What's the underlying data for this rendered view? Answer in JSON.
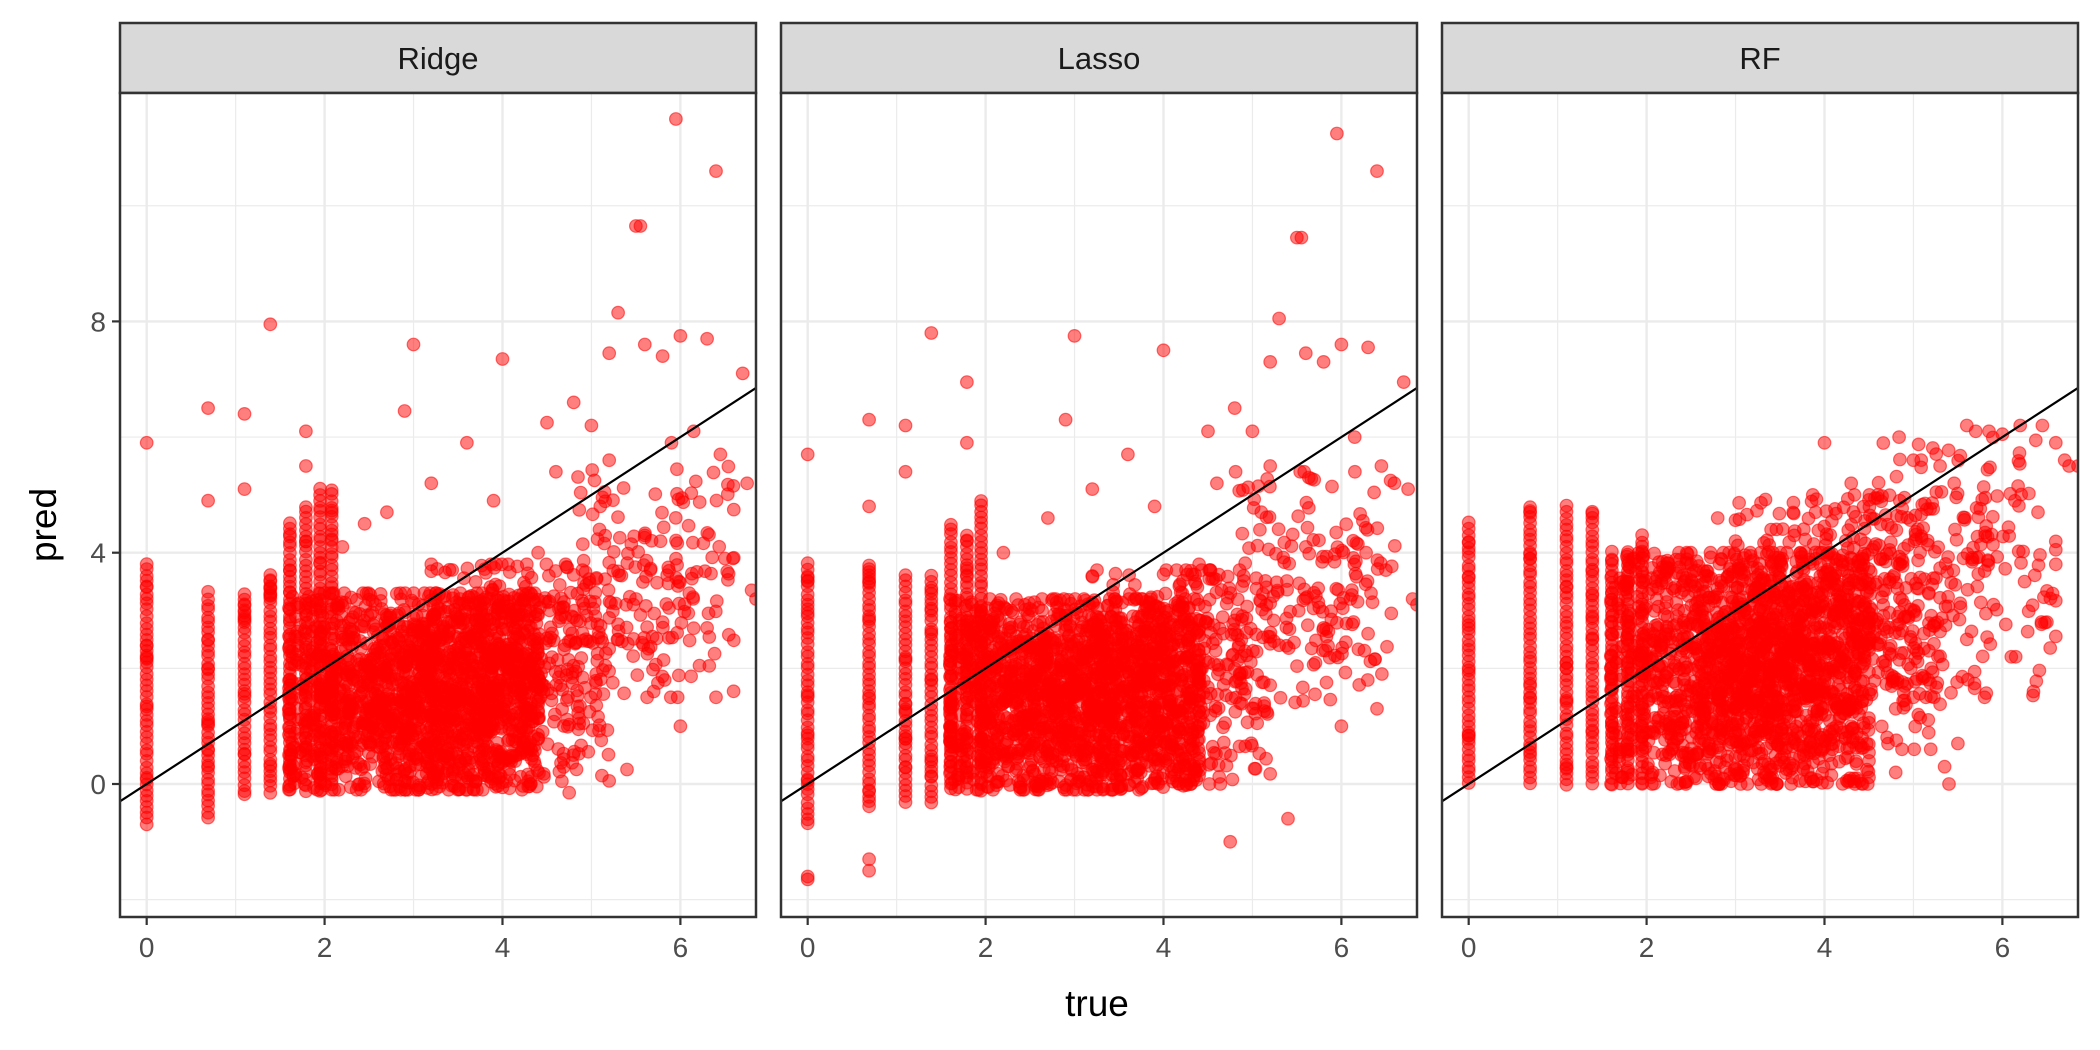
{
  "chart_data": {
    "type": "scatter",
    "xlabel": "true",
    "ylabel": "pred",
    "xlim": [
      -0.3,
      6.85
    ],
    "ylim": [
      -2.3,
      11.95
    ],
    "x_ticks": [
      0,
      2,
      4,
      6
    ],
    "x_tick_labels": [
      "0",
      "2",
      "4",
      "6"
    ],
    "y_ticks": [
      0,
      4,
      8
    ],
    "y_tick_labels": [
      "0",
      "4",
      "8"
    ],
    "reference_line": {
      "intercept": 0,
      "slope": 1
    },
    "grid": true,
    "legend": "none",
    "point_color": "#FF0000",
    "line_color": "#000000",
    "panels": [
      {
        "name": "Ridge",
        "vertical_strips": [
          {
            "x": 0,
            "y_min": -0.7,
            "y_max": 3.8
          },
          {
            "x": 0.69,
            "y_min": -0.6,
            "y_max": 3.3
          },
          {
            "x": 1.1,
            "y_min": -0.2,
            "y_max": 3.3
          },
          {
            "x": 1.39,
            "y_min": -0.15,
            "y_max": 3.6
          },
          {
            "x": 1.61,
            "y_min": -0.1,
            "y_max": 4.5
          },
          {
            "x": 1.79,
            "y_min": -0.1,
            "y_max": 4.8
          },
          {
            "x": 1.95,
            "y_min": -0.1,
            "y_max": 5.1
          },
          {
            "x": 2.08,
            "y_min": -0.1,
            "y_max": 5.1
          }
        ],
        "points": [
          [
            0,
            5.9
          ],
          [
            0.69,
            6.5
          ],
          [
            0.69,
            4.9
          ],
          [
            1.1,
            6.4
          ],
          [
            1.1,
            5.1
          ],
          [
            1.39,
            7.95
          ],
          [
            1.79,
            6.1
          ],
          [
            1.79,
            5.5
          ],
          [
            3.0,
            7.6
          ],
          [
            2.9,
            6.45
          ],
          [
            4.0,
            7.35
          ],
          [
            3.6,
            5.9
          ],
          [
            5.3,
            8.15
          ],
          [
            5.5,
            9.65
          ],
          [
            5.55,
            9.65
          ],
          [
            5.95,
            11.5
          ],
          [
            6.4,
            10.6
          ],
          [
            5.2,
            7.45
          ],
          [
            5.6,
            7.6
          ],
          [
            5.8,
            7.4
          ],
          [
            6.0,
            7.75
          ],
          [
            6.3,
            7.7
          ],
          [
            6.7,
            7.1
          ],
          [
            6.15,
            6.1
          ],
          [
            6.45,
            5.7
          ],
          [
            6.75,
            5.2
          ],
          [
            6.8,
            3.35
          ],
          [
            6.85,
            3.2
          ],
          [
            6.5,
            3.9
          ],
          [
            6.3,
            2.7
          ],
          [
            5.0,
            6.2
          ],
          [
            5.2,
            5.6
          ],
          [
            5.9,
            5.9
          ],
          [
            4.5,
            6.25
          ],
          [
            4.8,
            6.6
          ],
          [
            6.4,
            1.5
          ],
          [
            6.0,
            1.0
          ],
          [
            5.7,
            1.6
          ],
          [
            4.75,
            -0.15
          ],
          [
            5.4,
            0.25
          ],
          [
            3.5,
            -0.1
          ],
          [
            3.2,
            5.2
          ],
          [
            2.7,
            4.7
          ],
          [
            2.2,
            4.1
          ],
          [
            2.45,
            4.5
          ],
          [
            4.4,
            4.0
          ],
          [
            4.9,
            3.7
          ],
          [
            5.3,
            2.5
          ],
          [
            5.8,
            2.8
          ],
          [
            6.1,
            3.3
          ],
          [
            5.6,
            4.3
          ],
          [
            5.1,
            4.8
          ],
          [
            4.6,
            5.4
          ],
          [
            3.9,
            4.9
          ]
        ],
        "clusters": [
          {
            "x_range": [
              1.6,
              4.4
            ],
            "y_range": [
              -0.1,
              3.3
            ],
            "count": 1700
          },
          {
            "x_range": [
              3.2,
              5.2
            ],
            "y_range": [
              0.0,
              3.8
            ],
            "count": 450
          },
          {
            "x_range": [
              4.8,
              6.6
            ],
            "y_range": [
              1.5,
              5.5
            ],
            "count": 170
          }
        ]
      },
      {
        "name": "Lasso",
        "vertical_strips": [
          {
            "x": 0,
            "y_min": -0.7,
            "y_max": 3.8
          },
          {
            "x": 0.69,
            "y_min": -0.4,
            "y_max": 3.8
          },
          {
            "x": 1.1,
            "y_min": -0.3,
            "y_max": 3.6
          },
          {
            "x": 1.39,
            "y_min": -0.3,
            "y_max": 3.6
          },
          {
            "x": 1.61,
            "y_min": -0.1,
            "y_max": 4.5
          },
          {
            "x": 1.79,
            "y_min": -0.1,
            "y_max": 4.3
          },
          {
            "x": 1.95,
            "y_min": -0.1,
            "y_max": 4.9
          }
        ],
        "points": [
          [
            0,
            5.7
          ],
          [
            0,
            -1.6
          ],
          [
            0,
            -1.65
          ],
          [
            0.69,
            6.3
          ],
          [
            0.69,
            4.8
          ],
          [
            0.69,
            -1.3
          ],
          [
            0.69,
            -1.5
          ],
          [
            1.1,
            6.2
          ],
          [
            1.1,
            5.4
          ],
          [
            1.39,
            7.8
          ],
          [
            1.79,
            6.95
          ],
          [
            1.79,
            5.9
          ],
          [
            3.0,
            7.75
          ],
          [
            2.9,
            6.3
          ],
          [
            4.0,
            7.5
          ],
          [
            3.6,
            5.7
          ],
          [
            5.3,
            8.05
          ],
          [
            5.5,
            9.45
          ],
          [
            5.55,
            9.45
          ],
          [
            5.95,
            11.25
          ],
          [
            6.4,
            10.6
          ],
          [
            5.2,
            7.3
          ],
          [
            5.6,
            7.45
          ],
          [
            5.8,
            7.3
          ],
          [
            6.0,
            7.6
          ],
          [
            6.3,
            7.55
          ],
          [
            6.7,
            6.95
          ],
          [
            6.15,
            6.0
          ],
          [
            6.45,
            5.5
          ],
          [
            6.75,
            5.1
          ],
          [
            6.8,
            3.2
          ],
          [
            6.85,
            3.1
          ],
          [
            6.5,
            3.7
          ],
          [
            6.3,
            2.6
          ],
          [
            5.0,
            6.1
          ],
          [
            5.2,
            5.5
          ],
          [
            4.5,
            6.1
          ],
          [
            4.8,
            6.5
          ],
          [
            6.4,
            1.3
          ],
          [
            6.0,
            1.0
          ],
          [
            4.75,
            -1.0
          ],
          [
            5.4,
            -0.6
          ],
          [
            3.5,
            -0.05
          ],
          [
            3.2,
            5.1
          ],
          [
            2.7,
            4.6
          ],
          [
            2.2,
            4.0
          ],
          [
            4.4,
            3.8
          ],
          [
            4.9,
            3.6
          ],
          [
            5.3,
            2.4
          ],
          [
            5.8,
            2.7
          ],
          [
            6.1,
            3.2
          ],
          [
            5.6,
            4.1
          ],
          [
            5.1,
            4.7
          ],
          [
            4.6,
            5.2
          ],
          [
            3.9,
            4.8
          ]
        ],
        "clusters": [
          {
            "x_range": [
              1.6,
              4.4
            ],
            "y_range": [
              -0.1,
              3.2
            ],
            "count": 1700
          },
          {
            "x_range": [
              3.2,
              5.2
            ],
            "y_range": [
              0.0,
              3.7
            ],
            "count": 450
          },
          {
            "x_range": [
              4.8,
              6.6
            ],
            "y_range": [
              1.4,
              5.4
            ],
            "count": 170
          }
        ]
      },
      {
        "name": "RF",
        "vertical_strips": [
          {
            "x": 0,
            "y_min": 0.0,
            "y_max": 4.5
          },
          {
            "x": 0.69,
            "y_min": 0.0,
            "y_max": 4.8
          },
          {
            "x": 1.1,
            "y_min": 0.0,
            "y_max": 4.8
          },
          {
            "x": 1.39,
            "y_min": 0.0,
            "y_max": 4.7
          },
          {
            "x": 1.61,
            "y_min": 0.0,
            "y_max": 4.0
          },
          {
            "x": 1.79,
            "y_min": 0.0,
            "y_max": 4.0
          },
          {
            "x": 1.95,
            "y_min": 0.0,
            "y_max": 4.3
          }
        ],
        "points": [
          [
            4.0,
            5.9
          ],
          [
            4.3,
            5.2
          ],
          [
            4.6,
            5.0
          ],
          [
            5.0,
            5.6
          ],
          [
            5.3,
            5.5
          ],
          [
            5.6,
            6.2
          ],
          [
            5.7,
            6.1
          ],
          [
            5.85,
            6.1
          ],
          [
            6.0,
            6.05
          ],
          [
            6.2,
            6.2
          ],
          [
            6.45,
            6.2
          ],
          [
            6.6,
            5.9
          ],
          [
            6.7,
            5.6
          ],
          [
            6.75,
            5.5
          ],
          [
            6.85,
            5.5
          ],
          [
            6.4,
            4.7
          ],
          [
            6.6,
            3.8
          ],
          [
            6.5,
            2.8
          ],
          [
            6.1,
            2.2
          ],
          [
            6.15,
            2.2
          ],
          [
            6.35,
            1.6
          ],
          [
            5.8,
            1.5
          ],
          [
            5.5,
            0.7
          ],
          [
            5.35,
            0.3
          ],
          [
            5.4,
            0.0
          ],
          [
            4.8,
            0.2
          ],
          [
            4.3,
            1.0
          ],
          [
            4.8,
            1.3
          ],
          [
            5.2,
            2.0
          ],
          [
            5.6,
            2.5
          ],
          [
            5.9,
            3.1
          ],
          [
            6.25,
            3.5
          ],
          [
            3.9,
            4.7
          ],
          [
            3.4,
            4.4
          ],
          [
            2.8,
            4.6
          ],
          [
            3.0,
            4.2
          ]
        ],
        "clusters": [
          {
            "x_range": [
              1.6,
              4.5
            ],
            "y_range": [
              0.0,
              4.0
            ],
            "count": 1700
          },
          {
            "x_range": [
              3.0,
              5.3
            ],
            "y_range": [
              0.6,
              5.0
            ],
            "count": 500
          },
          {
            "x_range": [
              4.5,
              6.6
            ],
            "y_range": [
              1.5,
              6.0
            ],
            "count": 200
          }
        ]
      }
    ]
  }
}
